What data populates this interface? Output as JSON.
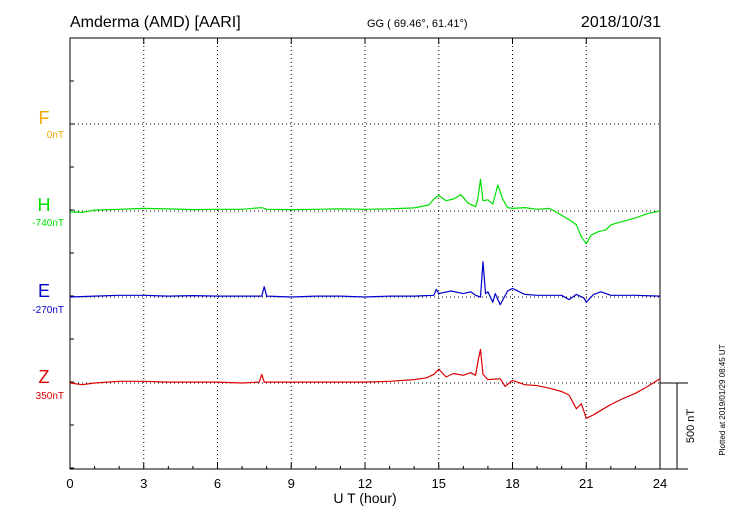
{
  "header": {
    "station": "Amderma (AMD)  [AARI]",
    "coords": "GG ( 69.46°,  61.41°)",
    "date": "2018/10/31"
  },
  "footer_note": "Plotted at 2019/01/29 08:45 UT",
  "chart_data": {
    "type": "line",
    "xlabel": "U T (hour)",
    "xlim": [
      0,
      24
    ],
    "x_ticks": [
      "0",
      "3",
      "6",
      "9",
      "12",
      "15",
      "18",
      "21",
      "24"
    ],
    "scale_bar": {
      "label": "500 nT",
      "value_nT": 500
    },
    "grid": true,
    "series": [
      {
        "name": "F",
        "baseline_label": "0nT",
        "color": "#f2a900",
        "x": [],
        "values": []
      },
      {
        "name": "H",
        "baseline_label": "-740nT",
        "color": "#00e000",
        "x": [
          0,
          0.5,
          1,
          2,
          3,
          4,
          5,
          6,
          7,
          7.8,
          8,
          9,
          10,
          11,
          12,
          13,
          14,
          14.6,
          14.8,
          15.0,
          15.3,
          15.6,
          15.9,
          16.2,
          16.5,
          16.6,
          16.7,
          16.8,
          17.0,
          17.2,
          17.4,
          17.6,
          17.8,
          18.0,
          18.5,
          19,
          19.5,
          20.0,
          20.3,
          20.6,
          20.8,
          21.0,
          21.2,
          21.5,
          21.8,
          22.0,
          22.5,
          23,
          23.5,
          24
        ],
        "values": [
          -5,
          -8,
          5,
          10,
          15,
          12,
          8,
          10,
          10,
          20,
          10,
          8,
          10,
          12,
          10,
          12,
          18,
          35,
          70,
          90,
          60,
          70,
          95,
          45,
          25,
          80,
          185,
          60,
          65,
          40,
          150,
          70,
          20,
          15,
          20,
          10,
          15,
          -25,
          -50,
          -80,
          -150,
          -190,
          -140,
          -120,
          -110,
          -80,
          -60,
          -40,
          -15,
          0
        ]
      },
      {
        "name": "E",
        "baseline_label": "-270nT",
        "color": "#0000cc",
        "x": [
          0,
          1,
          2,
          3,
          4,
          5,
          6,
          7,
          7.8,
          7.9,
          8,
          9,
          10,
          11,
          12,
          13,
          14,
          14.8,
          14.9,
          15.0,
          15.5,
          16.0,
          16.3,
          16.5,
          16.7,
          16.8,
          16.9,
          17.0,
          17.2,
          17.3,
          17.5,
          17.8,
          18.0,
          18.5,
          19,
          19.5,
          20.0,
          20.3,
          20.6,
          20.9,
          21.0,
          21.3,
          21.6,
          22,
          23,
          24
        ],
        "values": [
          0,
          5,
          10,
          10,
          5,
          8,
          5,
          5,
          5,
          60,
          5,
          0,
          5,
          5,
          0,
          5,
          5,
          10,
          45,
          20,
          35,
          20,
          30,
          10,
          0,
          205,
          20,
          30,
          -30,
          20,
          -45,
          35,
          50,
          15,
          10,
          10,
          10,
          -15,
          15,
          -5,
          -30,
          15,
          30,
          10,
          10,
          5
        ]
      },
      {
        "name": "Z",
        "baseline_label": "350nT",
        "color": "#dd0000",
        "x": [
          0,
          0.5,
          1,
          2,
          3,
          4,
          5,
          6,
          7,
          7.7,
          7.8,
          7.9,
          8,
          9,
          10,
          11,
          12,
          13,
          14,
          14.5,
          14.8,
          15.0,
          15.3,
          15.6,
          16.0,
          16.3,
          16.5,
          16.6,
          16.7,
          16.8,
          17.0,
          17.5,
          17.7,
          18.0,
          18.5,
          19.0,
          19.5,
          20.0,
          20.3,
          20.6,
          20.8,
          21.0,
          21.3,
          21.7,
          22.0,
          22.5,
          23.0,
          23.5,
          24
        ],
        "values": [
          0,
          -10,
          0,
          10,
          10,
          5,
          5,
          5,
          0,
          5,
          50,
          5,
          5,
          5,
          5,
          5,
          5,
          10,
          20,
          30,
          50,
          80,
          35,
          55,
          45,
          60,
          45,
          130,
          195,
          50,
          20,
          25,
          -20,
          15,
          -10,
          -15,
          -30,
          -50,
          -70,
          -150,
          -120,
          -205,
          -185,
          -150,
          -125,
          -90,
          -60,
          -20,
          25
        ]
      }
    ]
  }
}
